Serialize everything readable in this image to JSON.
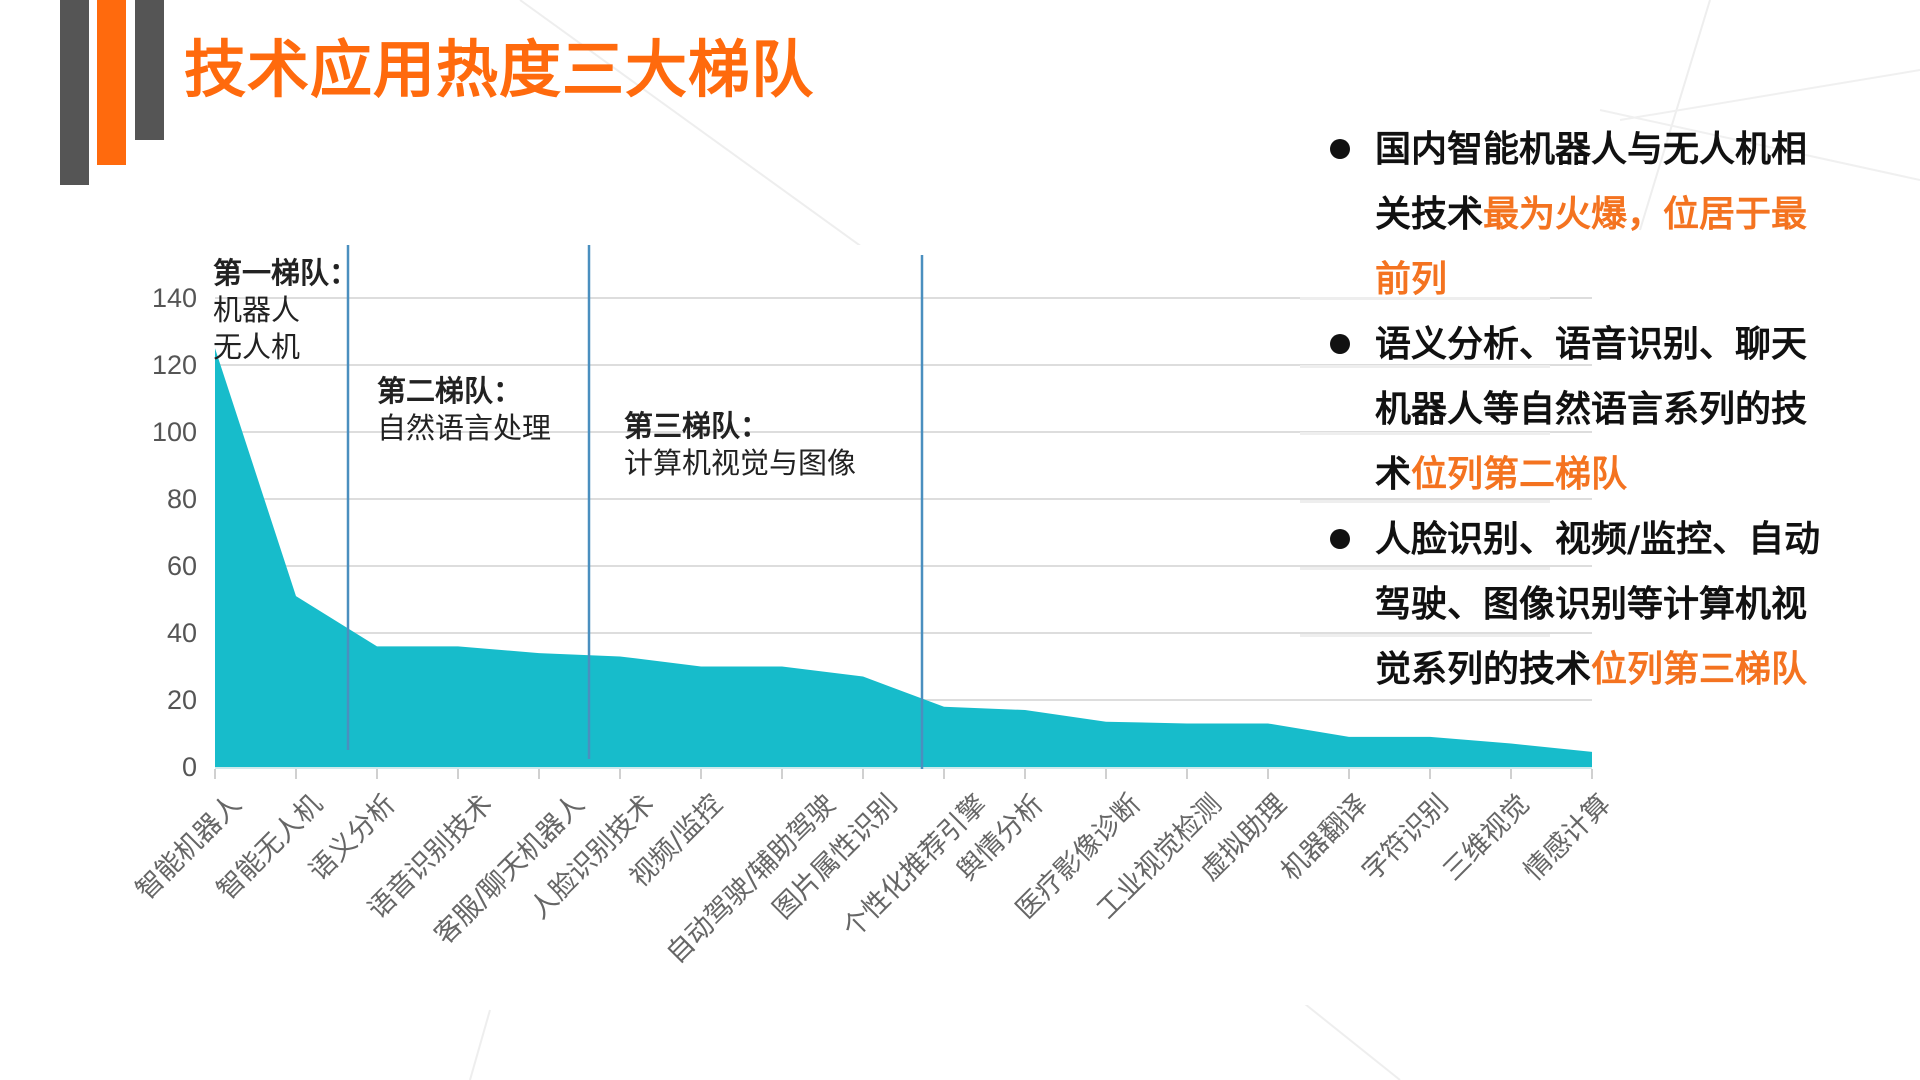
{
  "slide": {
    "title": "技术应用热度三大梯队",
    "colors": {
      "accent_orange": "#FF6A0D",
      "bar_grey": "#555555",
      "area_teal": "#17BCCB",
      "divider_blue": "#4A8FBF",
      "highlight_orange": "#F47320"
    }
  },
  "annotations": [
    {
      "heading": "第一梯队：",
      "lines": [
        "机器人",
        "无人机"
      ]
    },
    {
      "heading": "第二梯队：",
      "lines": [
        "自然语言处理"
      ]
    },
    {
      "heading": "第三梯队：",
      "lines": [
        "计算机视觉与图像"
      ]
    }
  ],
  "bullets": [
    {
      "segments": [
        {
          "text": "国内智能机器人与无人机相关技术",
          "highlight": false
        },
        {
          "text": "最为火爆，位居于最前列",
          "highlight": true
        }
      ],
      "lines": [
        [
          {
            "text": "国内智能机器人与无人机相",
            "highlight": false
          }
        ],
        [
          {
            "text": "关技术",
            "highlight": false
          },
          {
            "text": "最为火爆，位居于最",
            "highlight": true
          }
        ],
        [
          {
            "text": "前列",
            "highlight": true
          }
        ]
      ]
    },
    {
      "segments": [
        {
          "text": "语义分析、语音识别、聊天机器人等自然语言系列的技术",
          "highlight": false
        },
        {
          "text": "位列第二梯队",
          "highlight": true
        }
      ],
      "lines": [
        [
          {
            "text": "语义分析、语音识别、聊天",
            "highlight": false
          }
        ],
        [
          {
            "text": "机器人等自然语言系列的技",
            "highlight": false
          }
        ],
        [
          {
            "text": "术",
            "highlight": false
          },
          {
            "text": "位列第二梯队",
            "highlight": true
          }
        ]
      ]
    },
    {
      "segments": [
        {
          "text": "人脸识别、视频/监控、自动驾驶、图像识别等计算机视觉系列的技术",
          "highlight": false
        },
        {
          "text": "位列第三梯队",
          "highlight": true
        }
      ],
      "lines": [
        [
          {
            "text": "人脸识别、视频/监控、自动",
            "highlight": false
          }
        ],
        [
          {
            "text": "驾驶、图像识别等计算机视",
            "highlight": false
          }
        ],
        [
          {
            "text": "觉系列的技术",
            "highlight": false
          },
          {
            "text": "位列第三梯队",
            "highlight": true
          }
        ]
      ]
    }
  ],
  "chart_data": {
    "type": "area",
    "title": "",
    "xlabel": "",
    "ylabel": "",
    "ylim": [
      0,
      140
    ],
    "yticks": [
      0,
      20,
      40,
      60,
      80,
      100,
      120,
      140
    ],
    "grid": true,
    "legend": null,
    "categories": [
      "智能机器人",
      "智能无人机",
      "语义分析",
      "语音识别技术",
      "客服/聊天机器人",
      "人脸识别技术",
      "视频/监控",
      "自动驾驶/辅助驾驶",
      "图片属性识别",
      "个性化推荐引擎",
      "舆情分析",
      "医疗影像诊断",
      "工业视觉检测",
      "虚拟助理",
      "机器翻译",
      "字符识别",
      "三维视觉",
      "情感计算"
    ],
    "series": [
      {
        "name": "技术应用热度",
        "values": [
          125,
          51,
          36,
          36,
          34,
          33,
          30,
          30,
          27,
          18,
          17,
          13.5,
          13,
          13,
          9,
          9,
          7,
          4.5
        ]
      }
    ],
    "dividers": [
      {
        "after_index": 1.65,
        "label": "第一梯队 | 第二梯队"
      },
      {
        "after_index": 4.65,
        "label": "第二梯队 | 第三梯队"
      },
      {
        "after_index": 8.7,
        "label": "第三梯队 end"
      }
    ],
    "annotations": [
      "第一梯队：机器人 无人机",
      "第二梯队：自然语言处理",
      "第三梯队：计算机视觉与图像"
    ]
  }
}
